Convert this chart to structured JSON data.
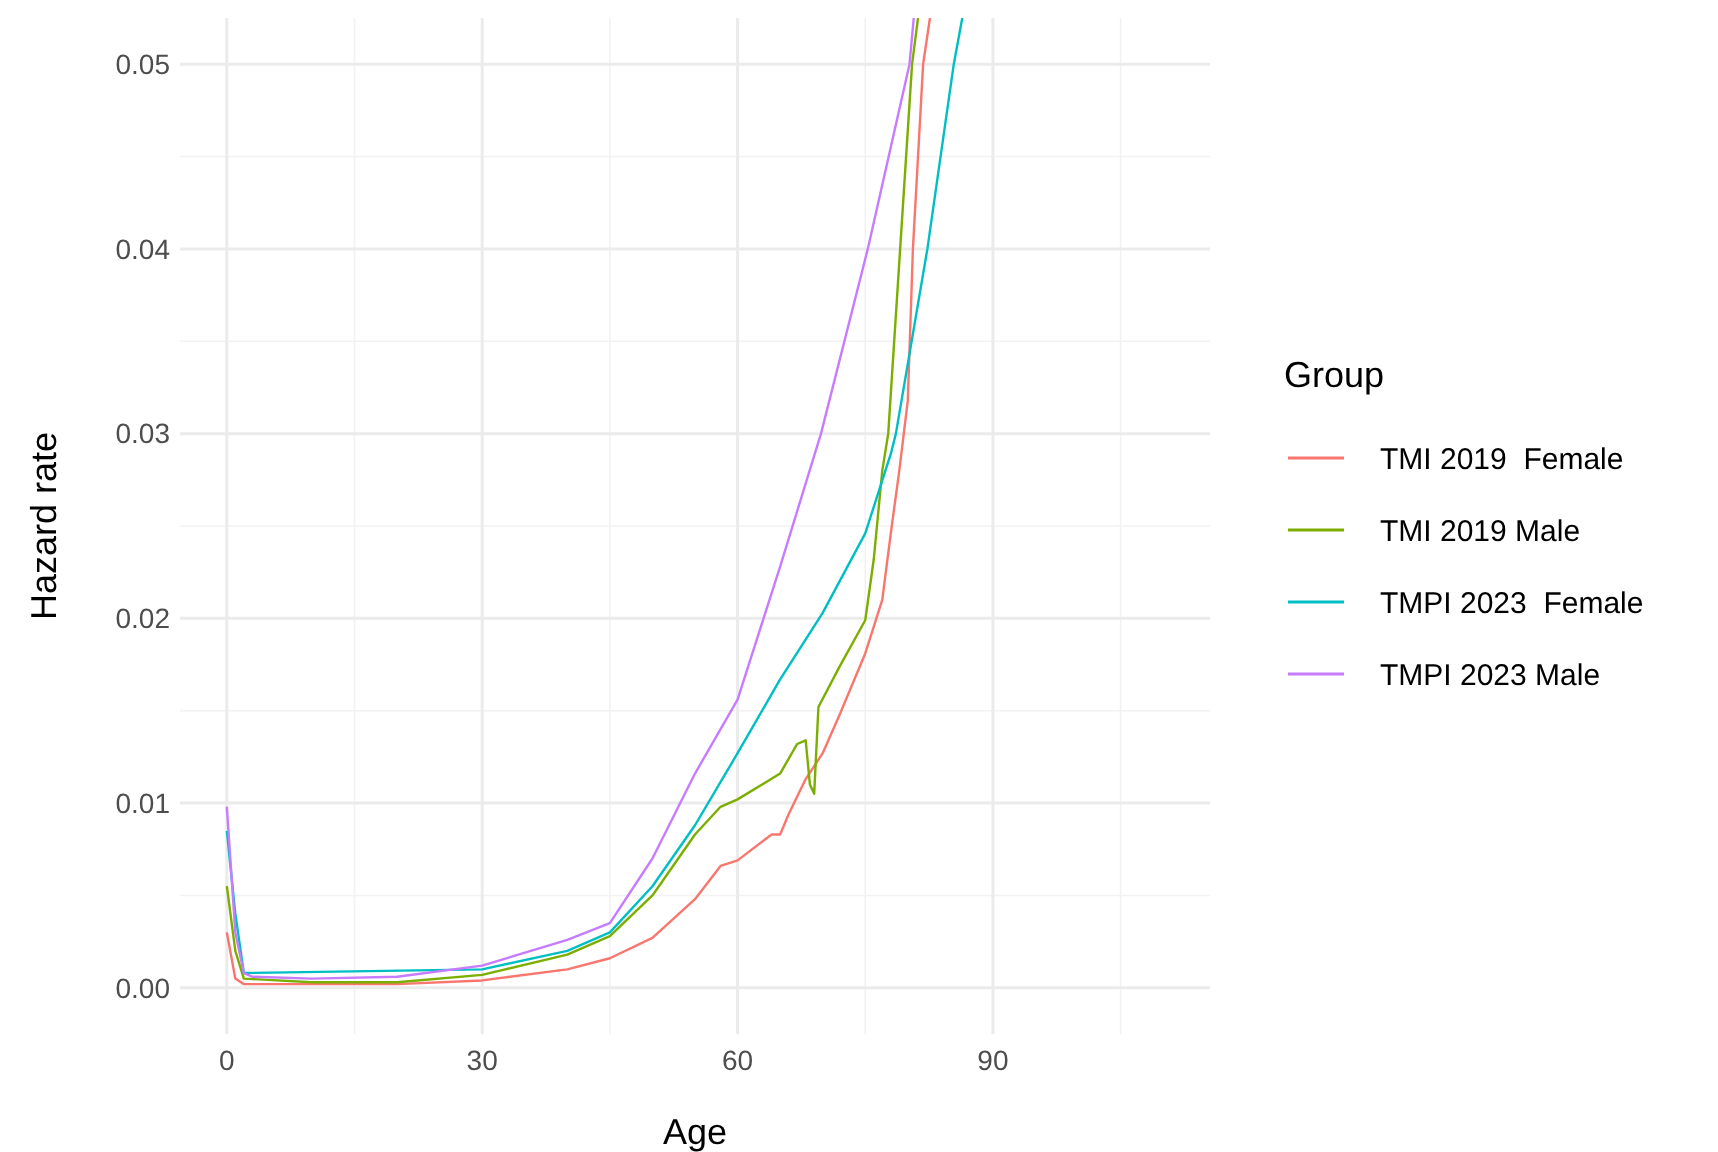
{
  "chart_data": {
    "type": "line",
    "xlabel": "Age",
    "ylabel": "Hazard rate",
    "legend_title": "Group",
    "legend": "right",
    "grid": true,
    "xlim": [
      -5.5,
      115.5
    ],
    "xticks": [
      0,
      30,
      60,
      90
    ],
    "ylim": [
      -0.0025,
      0.0525
    ],
    "yticks": [
      {
        "value": 0,
        "label": "0.00"
      },
      {
        "value": 0.01,
        "label": "0.01"
      },
      {
        "value": 0.02,
        "label": "0.02"
      },
      {
        "value": 0.03,
        "label": "0.03"
      },
      {
        "value": 0.04,
        "label": "0.04"
      },
      {
        "value": 0.05,
        "label": "0.05"
      }
    ],
    "series": [
      {
        "name": "TMI 2019  Female",
        "color": "#f8766d",
        "x": [
          0,
          1,
          2,
          10,
          20,
          30,
          40,
          45,
          50,
          55,
          58,
          60,
          64,
          65,
          66,
          68,
          70,
          72,
          75,
          77,
          78,
          79,
          80,
          80.6,
          81.8,
          82.6
        ],
        "values": [
          0.003,
          0.0005,
          0.0002,
          0.0002,
          0.0002,
          0.0004,
          0.001,
          0.0016,
          0.0027,
          0.0048,
          0.0066,
          0.0069,
          0.0083,
          0.0083,
          0.0094,
          0.0113,
          0.0127,
          0.0148,
          0.0181,
          0.021,
          0.0246,
          0.028,
          0.0318,
          0.04,
          0.05,
          0.0525
        ]
      },
      {
        "name": "TMI 2019 Male",
        "color": "#7cae00",
        "x": [
          0,
          1,
          2,
          10,
          20,
          30,
          40,
          45,
          50,
          55,
          58,
          60,
          65,
          67,
          68,
          68.5,
          69,
          69.5,
          72,
          75,
          76,
          77,
          77.7,
          79.1,
          80.5,
          81.2
        ],
        "values": [
          0.0055,
          0.002,
          0.0005,
          0.0003,
          0.0003,
          0.0007,
          0.0018,
          0.0028,
          0.005,
          0.0083,
          0.0098,
          0.0102,
          0.0116,
          0.0132,
          0.0134,
          0.011,
          0.0105,
          0.0152,
          0.0174,
          0.0199,
          0.0232,
          0.028,
          0.03,
          0.04,
          0.05,
          0.0525
        ]
      },
      {
        "name": "TMPI 2023  Female",
        "color": "#00bfc4",
        "x": [
          0,
          1,
          2,
          30,
          40,
          45,
          50,
          55,
          60,
          65,
          70,
          75,
          78,
          78.6,
          82.3,
          85.4,
          86.4
        ],
        "values": [
          0.0085,
          0.004,
          0.0008,
          0.001,
          0.002,
          0.003,
          0.0055,
          0.0088,
          0.0127,
          0.0167,
          0.0203,
          0.0246,
          0.0289,
          0.03,
          0.04,
          0.05,
          0.0525
        ]
      },
      {
        "name": "TMPI 2023 Male",
        "color": "#c77cff",
        "x": [
          0,
          1,
          2,
          3,
          10,
          20,
          30,
          40,
          45,
          50,
          55,
          60,
          65,
          69.8,
          75.3,
          80.2,
          80.7
        ],
        "values": [
          0.0098,
          0.003,
          0.0008,
          0.0006,
          0.0005,
          0.0006,
          0.0012,
          0.0026,
          0.0035,
          0.007,
          0.0116,
          0.0156,
          0.0228,
          0.03,
          0.04,
          0.05,
          0.0525
        ]
      }
    ]
  }
}
